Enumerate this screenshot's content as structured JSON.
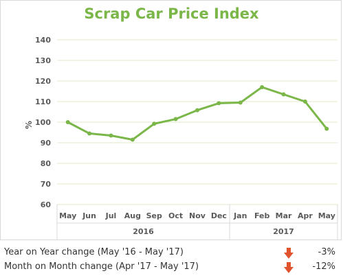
{
  "chart_data": {
    "type": "line",
    "title": "Scrap Car Price Index",
    "ylabel": "%",
    "ylim": [
      60,
      140
    ],
    "yticks": [
      60,
      70,
      80,
      90,
      100,
      110,
      120,
      130,
      140
    ],
    "grid": true,
    "categories": [
      "May",
      "Jun",
      "Jul",
      "Aug",
      "Sep",
      "Oct",
      "Nov",
      "Dec",
      "Jan",
      "Feb",
      "Mar",
      "Apr",
      "May"
    ],
    "groups": [
      {
        "label": "2016",
        "span": 8
      },
      {
        "label": "2017",
        "span": 5
      }
    ],
    "series": [
      {
        "values": [
          100,
          94.5,
          93.5,
          91.5,
          99.2,
          101.5,
          105.8,
          109.2,
          109.5,
          117,
          113.5,
          110,
          96.8
        ]
      }
    ],
    "colors": {
      "line": "#7ab648",
      "title": "#7ab648",
      "grid": "#dfe9c9",
      "axis_text": "#595959",
      "arrow": "#e0532c"
    }
  },
  "summary": {
    "yoy": {
      "label": "Year on Year change (May '16 - May '17)",
      "value": "-3%",
      "icon": "down-arrow-icon"
    },
    "mom": {
      "label": "Month on Month change (Apr '17 - May '17)",
      "value": "-12%",
      "icon": "down-arrow-icon"
    }
  }
}
